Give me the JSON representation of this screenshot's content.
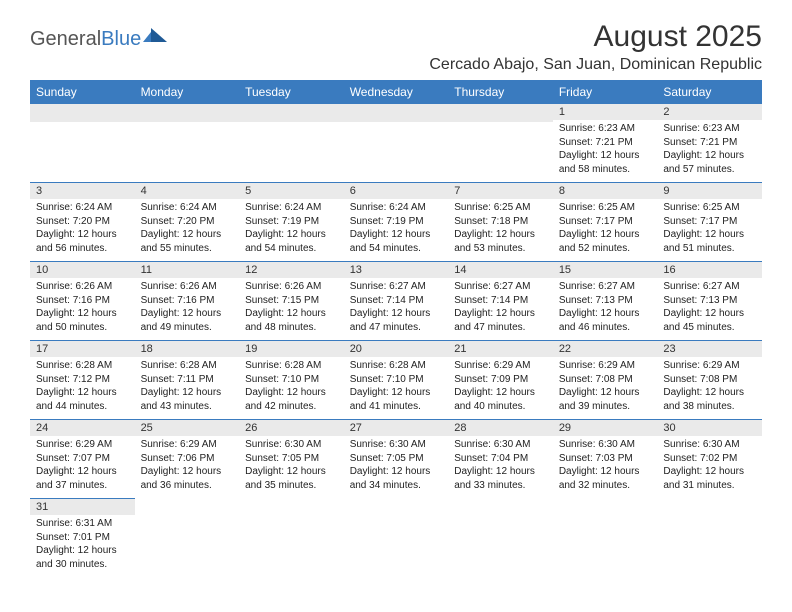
{
  "brand": {
    "part1": "General",
    "part2": "Blue"
  },
  "title": "August 2025",
  "location": "Cercado Abajo, San Juan, Dominican Republic",
  "colors": {
    "accent": "#3a7bbf",
    "header_bg": "#3a7bbf",
    "daynum_bg": "#eaeaea"
  },
  "weekdays": [
    "Sunday",
    "Monday",
    "Tuesday",
    "Wednesday",
    "Thursday",
    "Friday",
    "Saturday"
  ],
  "cells": [
    {
      "n": "",
      "sr": "",
      "ss": "",
      "dl": ""
    },
    {
      "n": "",
      "sr": "",
      "ss": "",
      "dl": ""
    },
    {
      "n": "",
      "sr": "",
      "ss": "",
      "dl": ""
    },
    {
      "n": "",
      "sr": "",
      "ss": "",
      "dl": ""
    },
    {
      "n": "",
      "sr": "",
      "ss": "",
      "dl": ""
    },
    {
      "n": "1",
      "sr": "Sunrise: 6:23 AM",
      "ss": "Sunset: 7:21 PM",
      "dl": "Daylight: 12 hours and 58 minutes."
    },
    {
      "n": "2",
      "sr": "Sunrise: 6:23 AM",
      "ss": "Sunset: 7:21 PM",
      "dl": "Daylight: 12 hours and 57 minutes."
    },
    {
      "n": "3",
      "sr": "Sunrise: 6:24 AM",
      "ss": "Sunset: 7:20 PM",
      "dl": "Daylight: 12 hours and 56 minutes."
    },
    {
      "n": "4",
      "sr": "Sunrise: 6:24 AM",
      "ss": "Sunset: 7:20 PM",
      "dl": "Daylight: 12 hours and 55 minutes."
    },
    {
      "n": "5",
      "sr": "Sunrise: 6:24 AM",
      "ss": "Sunset: 7:19 PM",
      "dl": "Daylight: 12 hours and 54 minutes."
    },
    {
      "n": "6",
      "sr": "Sunrise: 6:24 AM",
      "ss": "Sunset: 7:19 PM",
      "dl": "Daylight: 12 hours and 54 minutes."
    },
    {
      "n": "7",
      "sr": "Sunrise: 6:25 AM",
      "ss": "Sunset: 7:18 PM",
      "dl": "Daylight: 12 hours and 53 minutes."
    },
    {
      "n": "8",
      "sr": "Sunrise: 6:25 AM",
      "ss": "Sunset: 7:17 PM",
      "dl": "Daylight: 12 hours and 52 minutes."
    },
    {
      "n": "9",
      "sr": "Sunrise: 6:25 AM",
      "ss": "Sunset: 7:17 PM",
      "dl": "Daylight: 12 hours and 51 minutes."
    },
    {
      "n": "10",
      "sr": "Sunrise: 6:26 AM",
      "ss": "Sunset: 7:16 PM",
      "dl": "Daylight: 12 hours and 50 minutes."
    },
    {
      "n": "11",
      "sr": "Sunrise: 6:26 AM",
      "ss": "Sunset: 7:16 PM",
      "dl": "Daylight: 12 hours and 49 minutes."
    },
    {
      "n": "12",
      "sr": "Sunrise: 6:26 AM",
      "ss": "Sunset: 7:15 PM",
      "dl": "Daylight: 12 hours and 48 minutes."
    },
    {
      "n": "13",
      "sr": "Sunrise: 6:27 AM",
      "ss": "Sunset: 7:14 PM",
      "dl": "Daylight: 12 hours and 47 minutes."
    },
    {
      "n": "14",
      "sr": "Sunrise: 6:27 AM",
      "ss": "Sunset: 7:14 PM",
      "dl": "Daylight: 12 hours and 47 minutes."
    },
    {
      "n": "15",
      "sr": "Sunrise: 6:27 AM",
      "ss": "Sunset: 7:13 PM",
      "dl": "Daylight: 12 hours and 46 minutes."
    },
    {
      "n": "16",
      "sr": "Sunrise: 6:27 AM",
      "ss": "Sunset: 7:13 PM",
      "dl": "Daylight: 12 hours and 45 minutes."
    },
    {
      "n": "17",
      "sr": "Sunrise: 6:28 AM",
      "ss": "Sunset: 7:12 PM",
      "dl": "Daylight: 12 hours and 44 minutes."
    },
    {
      "n": "18",
      "sr": "Sunrise: 6:28 AM",
      "ss": "Sunset: 7:11 PM",
      "dl": "Daylight: 12 hours and 43 minutes."
    },
    {
      "n": "19",
      "sr": "Sunrise: 6:28 AM",
      "ss": "Sunset: 7:10 PM",
      "dl": "Daylight: 12 hours and 42 minutes."
    },
    {
      "n": "20",
      "sr": "Sunrise: 6:28 AM",
      "ss": "Sunset: 7:10 PM",
      "dl": "Daylight: 12 hours and 41 minutes."
    },
    {
      "n": "21",
      "sr": "Sunrise: 6:29 AM",
      "ss": "Sunset: 7:09 PM",
      "dl": "Daylight: 12 hours and 40 minutes."
    },
    {
      "n": "22",
      "sr": "Sunrise: 6:29 AM",
      "ss": "Sunset: 7:08 PM",
      "dl": "Daylight: 12 hours and 39 minutes."
    },
    {
      "n": "23",
      "sr": "Sunrise: 6:29 AM",
      "ss": "Sunset: 7:08 PM",
      "dl": "Daylight: 12 hours and 38 minutes."
    },
    {
      "n": "24",
      "sr": "Sunrise: 6:29 AM",
      "ss": "Sunset: 7:07 PM",
      "dl": "Daylight: 12 hours and 37 minutes."
    },
    {
      "n": "25",
      "sr": "Sunrise: 6:29 AM",
      "ss": "Sunset: 7:06 PM",
      "dl": "Daylight: 12 hours and 36 minutes."
    },
    {
      "n": "26",
      "sr": "Sunrise: 6:30 AM",
      "ss": "Sunset: 7:05 PM",
      "dl": "Daylight: 12 hours and 35 minutes."
    },
    {
      "n": "27",
      "sr": "Sunrise: 6:30 AM",
      "ss": "Sunset: 7:05 PM",
      "dl": "Daylight: 12 hours and 34 minutes."
    },
    {
      "n": "28",
      "sr": "Sunrise: 6:30 AM",
      "ss": "Sunset: 7:04 PM",
      "dl": "Daylight: 12 hours and 33 minutes."
    },
    {
      "n": "29",
      "sr": "Sunrise: 6:30 AM",
      "ss": "Sunset: 7:03 PM",
      "dl": "Daylight: 12 hours and 32 minutes."
    },
    {
      "n": "30",
      "sr": "Sunrise: 6:30 AM",
      "ss": "Sunset: 7:02 PM",
      "dl": "Daylight: 12 hours and 31 minutes."
    },
    {
      "n": "31",
      "sr": "Sunrise: 6:31 AM",
      "ss": "Sunset: 7:01 PM",
      "dl": "Daylight: 12 hours and 30 minutes."
    },
    {
      "n": "",
      "sr": "",
      "ss": "",
      "dl": ""
    },
    {
      "n": "",
      "sr": "",
      "ss": "",
      "dl": ""
    },
    {
      "n": "",
      "sr": "",
      "ss": "",
      "dl": ""
    },
    {
      "n": "",
      "sr": "",
      "ss": "",
      "dl": ""
    },
    {
      "n": "",
      "sr": "",
      "ss": "",
      "dl": ""
    },
    {
      "n": "",
      "sr": "",
      "ss": "",
      "dl": ""
    }
  ]
}
